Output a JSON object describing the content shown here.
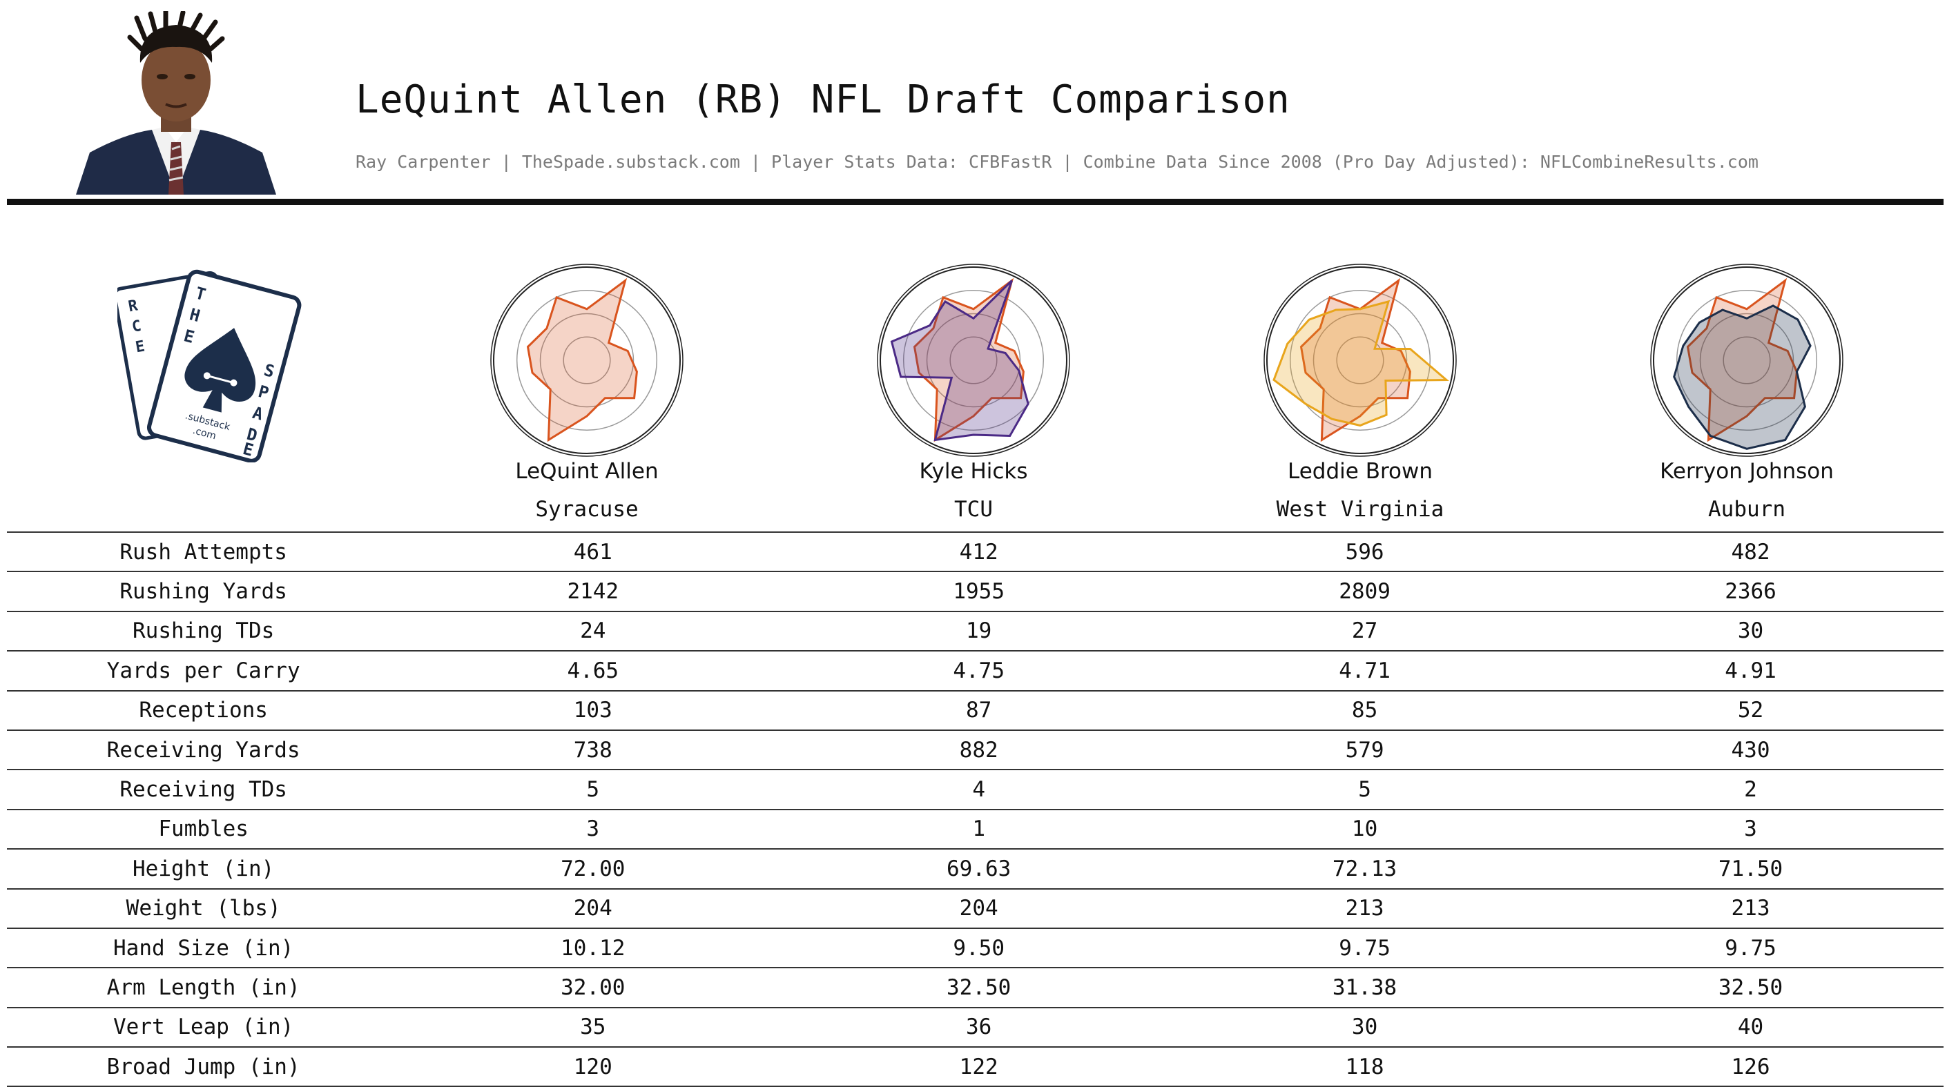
{
  "header": {
    "title": "LeQuint Allen (RB) NFL Draft Comparison",
    "subtitle": "Ray Carpenter | TheSpade.substack.com | Player Stats Data: CFBFastR | Combine Data Since 2008 (Pro Day Adjusted): NFLCombineResults.com"
  },
  "logo": {
    "letters_left": "RCE",
    "letters_right": "THE SPADE",
    "substack_text": ".substack",
    "com_text": ".com",
    "color": "#1c2e4a"
  },
  "players": [
    {
      "name": "LeQuint Allen",
      "school": "Syracuse",
      "color": "#d9541e"
    },
    {
      "name": "Kyle Hicks",
      "school": "TCU",
      "color": "#4b2a86"
    },
    {
      "name": "Leddie Brown",
      "school": "West Virginia",
      "color": "#e8a51c"
    },
    {
      "name": "Kerryon Johnson",
      "school": "Auburn",
      "color": "#1c2e4a"
    }
  ],
  "chart_data": {
    "type": "radar",
    "axes_count": 14,
    "rings": 4,
    "reference_series": {
      "name": "LeQuint Allen",
      "color": "#d9541e",
      "values": [
        0.55,
        0.95,
        0.3,
        0.45,
        0.55,
        0.65,
        0.45,
        0.6,
        0.95,
        0.5,
        0.6,
        0.65,
        0.55,
        0.75
      ]
    },
    "series": [
      {
        "name": "LeQuint Allen",
        "color": "#d9541e",
        "values": [
          0.55,
          0.95,
          0.3,
          0.45,
          0.55,
          0.65,
          0.45,
          0.6,
          0.95,
          0.5,
          0.6,
          0.65,
          0.55,
          0.75
        ]
      },
      {
        "name": "Kyle Hicks",
        "color": "#4b2a86",
        "values": [
          0.45,
          0.95,
          0.2,
          0.35,
          0.5,
          0.75,
          0.9,
          0.8,
          0.95,
          0.3,
          0.8,
          0.9,
          0.6,
          0.7
        ]
      },
      {
        "name": "Leddie Brown",
        "color": "#e8a51c",
        "values": [
          0.55,
          0.7,
          0.2,
          0.55,
          0.95,
          0.35,
          0.65,
          0.7,
          0.7,
          0.75,
          0.95,
          0.8,
          0.7,
          0.6
        ]
      },
      {
        "name": "Kerryon Johnson",
        "color": "#1c2e4a",
        "values": [
          0.45,
          0.65,
          0.7,
          0.7,
          0.55,
          0.8,
          0.95,
          0.95,
          0.9,
          0.8,
          0.8,
          0.7,
          0.65,
          0.6
        ]
      }
    ]
  },
  "table": {
    "rows": [
      {
        "label": "Rush Attempts",
        "values": [
          "461",
          "412",
          "596",
          "482"
        ]
      },
      {
        "label": "Rushing Yards",
        "values": [
          "2142",
          "1955",
          "2809",
          "2366"
        ]
      },
      {
        "label": "Rushing TDs",
        "values": [
          "24",
          "19",
          "27",
          "30"
        ]
      },
      {
        "label": "Yards per Carry",
        "values": [
          "4.65",
          "4.75",
          "4.71",
          "4.91"
        ]
      },
      {
        "label": "Receptions",
        "values": [
          "103",
          "87",
          "85",
          "52"
        ]
      },
      {
        "label": "Receiving Yards",
        "values": [
          "738",
          "882",
          "579",
          "430"
        ]
      },
      {
        "label": "Receiving TDs",
        "values": [
          "5",
          "4",
          "5",
          "2"
        ]
      },
      {
        "label": "Fumbles",
        "values": [
          "3",
          "1",
          "10",
          "3"
        ]
      },
      {
        "label": "Height (in)",
        "values": [
          "72.00",
          "69.63",
          "72.13",
          "71.50"
        ]
      },
      {
        "label": "Weight (lbs)",
        "values": [
          "204",
          "204",
          "213",
          "213"
        ]
      },
      {
        "label": "Hand Size (in)",
        "values": [
          "10.12",
          "9.50",
          "9.75",
          "9.75"
        ]
      },
      {
        "label": "Arm Length (in)",
        "values": [
          "32.00",
          "32.50",
          "31.38",
          "32.50"
        ]
      },
      {
        "label": "Vert Leap (in)",
        "values": [
          "35",
          "36",
          "30",
          "40"
        ]
      },
      {
        "label": "Broad Jump (in)",
        "values": [
          "120",
          "122",
          "118",
          "126"
        ]
      }
    ]
  }
}
